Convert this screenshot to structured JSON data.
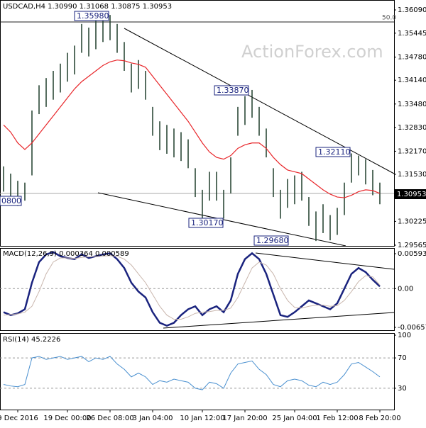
{
  "chart_data": [
    {
      "type": "ohlc",
      "title": "USDCAD,H4  1.30990 1.31068 1.30875 1.30953",
      "watermark": "ActionForex.com",
      "fib_label": "50.0",
      "last_price": "1.30953",
      "annotations": [
        "1.35980",
        "1.33870",
        "1.32110",
        "1.30170",
        "1.29680",
        "0800"
      ],
      "categories": [
        null,
        null,
        "9 Dec 2016",
        null,
        null,
        null,
        null,
        null,
        null,
        "19 Dec 00:00",
        null,
        null,
        null,
        null,
        null,
        "26 Dec 08:00",
        null,
        null,
        null,
        null,
        null,
        "3 Jan 04:00",
        null,
        null,
        null,
        null,
        null,
        null,
        "10 Jan 12:00",
        null,
        null,
        null,
        null,
        null,
        "17 Jan 20:00",
        null,
        null,
        null,
        null,
        null,
        null,
        "25 Jan 04:00",
        null,
        null,
        null,
        null,
        null,
        "1 Feb 12:00",
        null,
        null,
        null,
        null,
        null,
        "8 Feb 20:00"
      ],
      "highs": [
        1.3175,
        1.3155,
        1.3135,
        1.313,
        1.333,
        1.34,
        1.342,
        1.344,
        1.346,
        1.349,
        1.351,
        1.357,
        1.356,
        1.358,
        1.3598,
        1.3595,
        1.357,
        1.352,
        1.346,
        1.347,
        1.344,
        1.334,
        1.33,
        1.329,
        1.328,
        1.327,
        1.325,
        1.317,
        1.311,
        1.316,
        1.316,
        1.311,
        1.32,
        1.334,
        1.337,
        1.3387,
        1.334,
        1.328,
        1.317,
        1.311,
        1.314,
        1.315,
        1.316,
        1.309,
        1.305,
        1.307,
        1.304,
        1.306,
        1.313,
        1.3211,
        1.3205,
        1.3195,
        1.3165,
        1.313
      ],
      "lows": [
        1.3105,
        1.3085,
        1.3065,
        1.308,
        1.315,
        1.332,
        1.334,
        1.336,
        1.338,
        1.341,
        1.343,
        1.349,
        1.348,
        1.35,
        1.352,
        1.3525,
        1.349,
        1.344,
        1.338,
        1.339,
        1.336,
        1.326,
        1.322,
        1.321,
        1.32,
        1.319,
        1.317,
        1.309,
        1.3017,
        1.308,
        1.308,
        1.303,
        1.31,
        1.326,
        1.329,
        1.331,
        1.326,
        1.32,
        1.309,
        1.303,
        1.306,
        1.307,
        1.308,
        1.301,
        1.2968,
        1.299,
        1.297,
        1.2985,
        1.304,
        1.313,
        1.315,
        1.3125,
        1.3095,
        1.307
      ],
      "color": "#1f3d2b",
      "series": [
        {
          "color": "#e8262a",
          "values": [
            1.329,
            1.327,
            1.324,
            1.3222,
            1.324,
            1.3265,
            1.329,
            1.3315,
            1.334,
            1.3365,
            1.339,
            1.341,
            1.3425,
            1.344,
            1.3455,
            1.3465,
            1.347,
            1.3468,
            1.3462,
            1.3458,
            1.345,
            1.3425,
            1.34,
            1.3375,
            1.335,
            1.3325,
            1.33,
            1.327,
            1.324,
            1.3215,
            1.32,
            1.3195,
            1.3205,
            1.3225,
            1.3235,
            1.324,
            1.324,
            1.3225,
            1.32,
            1.318,
            1.3165,
            1.316,
            1.3155,
            1.314,
            1.3125,
            1.311,
            1.3098,
            1.309,
            1.3088,
            1.3095,
            1.3105,
            1.311,
            1.3108,
            1.31
          ]
        }
      ],
      "ylim": [
        1.29545,
        1.36365
      ],
      "yticks": [
        {
          "value": 1.3609,
          "label": "1.36090"
        },
        1.35445,
        {
          "value": 1.3478,
          "label": "1.34780"
        },
        {
          "value": 1.3414,
          "label": "1.34140"
        },
        {
          "value": 1.3348,
          "label": "1.33480"
        },
        {
          "value": 1.3283,
          "label": "1.32830"
        },
        {
          "value": 1.3217,
          "label": "1.32170"
        },
        {
          "value": 1.3153,
          "label": "1.31530"
        },
        1.30225,
        1.29565
      ]
    },
    {
      "type": "line",
      "title": "MACD(12,26,9) 0.000364 0.000589",
      "series": [
        {
          "color": "#1a237e",
          "width": 2.5,
          "values": [
            -0.004,
            -0.0045,
            -0.0042,
            -0.0035,
            0.001,
            0.0045,
            0.0058,
            0.0062,
            0.0055,
            0.0052,
            0.005,
            0.0058,
            0.0052,
            0.0055,
            0.0058,
            0.006,
            0.005,
            0.0035,
            0.001,
            -0.0005,
            -0.0015,
            -0.004,
            -0.0058,
            -0.0063,
            -0.0058,
            -0.0045,
            -0.0035,
            -0.003,
            -0.0045,
            -0.0035,
            -0.003,
            -0.004,
            -0.002,
            0.0025,
            0.005,
            0.006,
            0.005,
            0.0025,
            -0.001,
            -0.0045,
            -0.0048,
            -0.004,
            -0.003,
            -0.002,
            -0.0025,
            -0.003,
            -0.0035,
            -0.0025,
            0.0,
            0.0025,
            0.0035,
            0.0028,
            0.0015,
            0.000364
          ]
        },
        {
          "color": "#c9b6ad",
          "width": 1,
          "values": [
            -0.0045,
            -0.0044,
            -0.0043,
            -0.004,
            -0.003,
            -0.0005,
            0.0025,
            0.0045,
            0.0052,
            0.0052,
            0.0051,
            0.0053,
            0.0054,
            0.0054,
            0.0055,
            0.0056,
            0.0055,
            0.005,
            0.004,
            0.0025,
            0.001,
            -0.001,
            -0.003,
            -0.0045,
            -0.0052,
            -0.0052,
            -0.0048,
            -0.0042,
            -0.004,
            -0.0039,
            -0.0037,
            -0.0037,
            -0.0033,
            -0.0015,
            0.001,
            0.0035,
            0.0045,
            0.004,
            0.0025,
            0.0,
            -0.002,
            -0.0032,
            -0.0033,
            -0.003,
            -0.0028,
            -0.0028,
            -0.003,
            -0.0029,
            -0.002,
            -0.0005,
            0.0012,
            0.0022,
            0.002,
            0.000589
          ]
        }
      ],
      "ylim": [
        -0.00706,
        0.00665
      ],
      "yticks": [
        0.00593,
        {
          "value": 0,
          "label": "0.00"
        },
        -0.006575
      ],
      "dashed": [
        0
      ]
    },
    {
      "type": "line",
      "title": "RSI(14) 45.2226",
      "series": [
        {
          "color": "#4a90d0",
          "width": 1,
          "values": [
            35,
            33,
            32,
            35,
            70,
            72,
            68,
            70,
            72,
            68,
            70,
            72,
            65,
            70,
            68,
            72,
            62,
            55,
            45,
            50,
            45,
            35,
            40,
            38,
            42,
            40,
            38,
            30,
            28,
            38,
            36,
            30,
            50,
            62,
            64,
            66,
            55,
            48,
            35,
            32,
            40,
            42,
            40,
            34,
            32,
            38,
            35,
            38,
            48,
            62,
            64,
            58,
            52,
            45
          ]
        }
      ],
      "ylim": [
        0,
        100
      ],
      "yticks": [
        30,
        70,
        100
      ],
      "dashed": [
        30,
        70
      ]
    }
  ]
}
